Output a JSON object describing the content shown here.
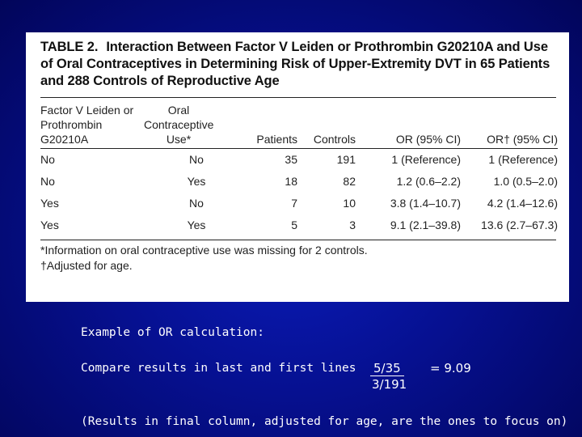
{
  "table": {
    "label": "TABLE 2.",
    "title": "Interaction Between Factor V Leiden or Prothrombin G20210A and Use of Oral Contraceptives in Determining Risk of Upper-Extremity DVT in 65 Patients and 288 Controls of Reproductive Age",
    "headers": {
      "factor": [
        "Factor V Leiden or",
        "Prothrombin",
        "G20210A"
      ],
      "oc": [
        "Oral",
        "Contraceptive",
        "Use*"
      ],
      "patients": "Patients",
      "controls": "Controls",
      "or": "OR (95% CI)",
      "or_adj": "OR† (95% CI)"
    },
    "rows": [
      {
        "factor": "No",
        "oc": "No",
        "patients": "35",
        "controls": "191",
        "or": "1 (Reference)",
        "or_adj": "1 (Reference)"
      },
      {
        "factor": "No",
        "oc": "Yes",
        "patients": "18",
        "controls": "82",
        "or": "1.2 (0.6–2.2)",
        "or_adj": "1.0 (0.5–2.0)"
      },
      {
        "factor": "Yes",
        "oc": "No",
        "patients": "7",
        "controls": "10",
        "or": "3.8 (1.4–10.7)",
        "or_adj": "4.2 (1.4–12.6)"
      },
      {
        "factor": "Yes",
        "oc": "Yes",
        "patients": "5",
        "controls": "3",
        "or": "9.1 (2.1–39.8)",
        "or_adj": "13.6 (2.7–67.3)"
      }
    ],
    "footnotes": [
      "*Information on oral contraceptive use was missing for 2 controls.",
      "†Adjusted for age."
    ]
  },
  "notes": {
    "example_heading": "Example of OR calculation:",
    "compare": "Compare results in last and first lines",
    "numerator": "5/35",
    "denominator": "3/191",
    "result": "= 9.09",
    "focus": "(Results in final column, adjusted for age, are the ones to focus on)"
  }
}
